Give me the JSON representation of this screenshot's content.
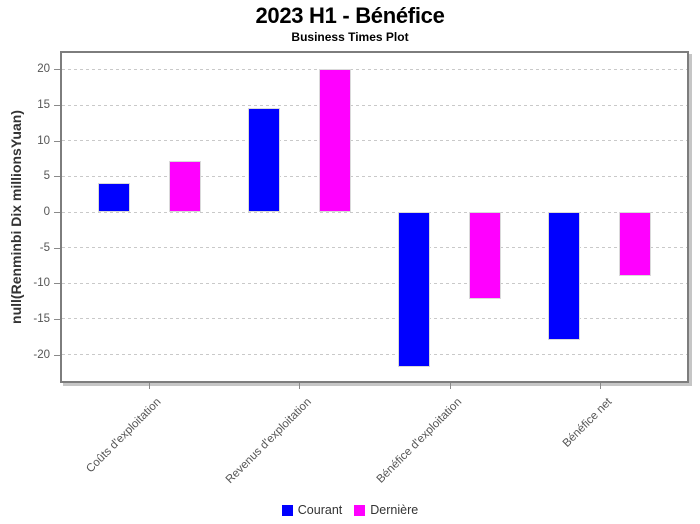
{
  "header": {
    "title": "2023 H1 - Bénéfice",
    "subtitle": "Business Times Plot"
  },
  "chart_data": {
    "type": "bar",
    "title": "2023 H1 - Bénéfice",
    "subtitle": "Business Times Plot",
    "categories": [
      "Coûts d'exploitation",
      "Revenus d'exploitation",
      "Bénéfice d'exploitation",
      "Bénéfice net"
    ],
    "series": [
      {
        "name": "Courant",
        "color": "#0000ff",
        "values": [
          4.1,
          14.6,
          -21.8,
          -18.0
        ]
      },
      {
        "name": "Dernière",
        "color": "#ff00ff",
        "values": [
          7.2,
          20.1,
          -12.2,
          -9.0
        ]
      }
    ],
    "xlabel": "",
    "ylabel": "null(Renminbi Dix millionsYuan)",
    "ylim": [
      -23.7,
      22.3
    ],
    "yticks": [
      20,
      15,
      10,
      5,
      0,
      -5,
      -10,
      -15,
      -20
    ],
    "grid": "dashed",
    "gridline_color": "#c9c9c9",
    "axis_text_color": "#555555",
    "legend_position": "bottom"
  }
}
